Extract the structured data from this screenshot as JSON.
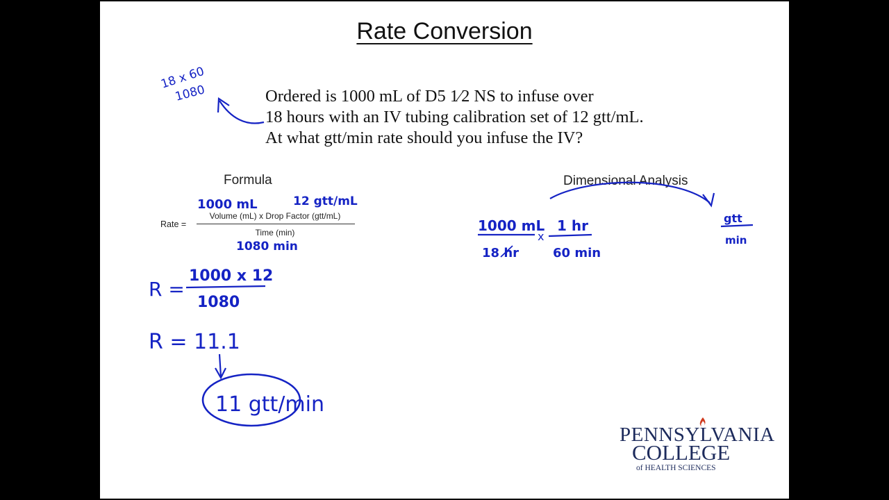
{
  "slide": {
    "title": "Rate Conversion",
    "question": [
      "Ordered is 1000 mL of D5 1⁄2 NS to infuse over",
      "18 hours with an IV tubing calibration set of 12 gtt/mL.",
      "At what gtt/min rate should you infuse the IV?"
    ],
    "formula": {
      "heading": "Formula",
      "rate_label": "Rate =",
      "numerator": "Volume (mL) x Drop Factor (gtt/mL)",
      "denominator": "Time (min)"
    },
    "dimensional_analysis": {
      "heading": "Dimensional Analysis"
    }
  },
  "handwriting": {
    "side_calc_top": "18 x 60",
    "side_calc_bottom": "1080",
    "volume": "1000 mL",
    "drop_factor": "12 gtt/mL",
    "time": "1080 min",
    "r_numerator": "1000 x 12",
    "r_denominator": "1080",
    "r_lhs": "R =",
    "r_result": "R = 11.1",
    "answer": "11 gtt/min",
    "da_num1": "1000 mL",
    "da_den1": "18 hr",
    "da_times": "x",
    "da_num2": "1 hr",
    "da_den2": "60 min",
    "da_target_num": "gtt",
    "da_target_den": "min",
    "ink_color": "#1523c4"
  },
  "logo": {
    "line1": "PENNSYLVANIA",
    "line2": "COLLEGE",
    "line3": "of HEALTH SCIENCES"
  }
}
